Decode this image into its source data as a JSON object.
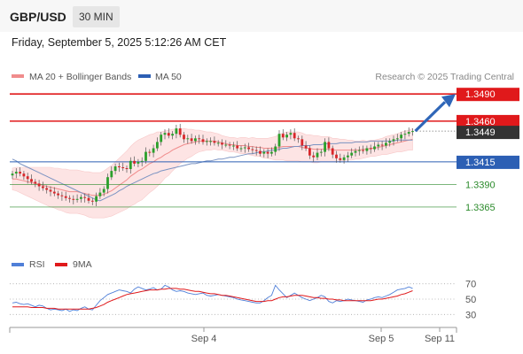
{
  "header": {
    "pair": "GBP/USD",
    "timeframe": "30 MIN",
    "datetime": "Friday, September 5, 2025 5:12:26 AM CET"
  },
  "legend": {
    "ma20_label": "MA 20 + Bollinger Bands",
    "ma50_label": "MA 50",
    "copyright": "Research © 2025 Trading Central"
  },
  "colors": {
    "resistance": "#e0191b",
    "support": "#2c5fb4",
    "target": "#2a8a2a",
    "bullish_candle": "#2ba02b",
    "bearish_candle": "#d9262a",
    "ma20": "#f08c8c",
    "ma50": "#7b93c2",
    "bollinger_fill": "#fde4e4",
    "arrow": "#2f66b8",
    "current_price_bg": "#333333",
    "rsi": "#4f7fd8",
    "rsi_ma": "#e0191b"
  },
  "chart_data": [
    {
      "type": "candlestick",
      "x_ticks": [
        "Sep 4",
        "Sep 5",
        "Sep 11"
      ],
      "levels": [
        {
          "value": 1.349,
          "label": "1.3490",
          "kind": "resistance"
        },
        {
          "value": 1.346,
          "label": "1.3460",
          "kind": "resistance"
        },
        {
          "value": 1.3415,
          "label": "1.3415",
          "kind": "pivot"
        },
        {
          "value": 1.339,
          "label": "1.3390",
          "kind": "support"
        },
        {
          "value": 1.3365,
          "label": "1.3365",
          "kind": "support"
        }
      ],
      "current_price": {
        "value": 1.3449,
        "label": "1.3449"
      },
      "series": [
        {
          "name": "MA 20 + Bollinger Bands"
        },
        {
          "name": "MA 50"
        }
      ],
      "ylim": [
        1.3318,
        1.35
      ],
      "closes": [
        1.3402,
        1.3404,
        1.3402,
        1.3399,
        1.3396,
        1.3393,
        1.3391,
        1.3388,
        1.3386,
        1.3384,
        1.3382,
        1.338,
        1.3378,
        1.3377,
        1.3375,
        1.3374,
        1.3373,
        1.3374,
        1.3376,
        1.3375,
        1.3372,
        1.3371,
        1.3377,
        1.3381,
        1.3385,
        1.3398,
        1.3405,
        1.341,
        1.3409,
        1.3408,
        1.3407,
        1.3416,
        1.3413,
        1.3415,
        1.3416,
        1.3426,
        1.3425,
        1.343,
        1.3437,
        1.3445,
        1.3447,
        1.3444,
        1.3446,
        1.3452,
        1.3445,
        1.344,
        1.3441,
        1.3438,
        1.3441,
        1.344,
        1.3437,
        1.3438,
        1.3438,
        1.3436,
        1.3436,
        1.3434,
        1.3434,
        1.3433,
        1.3433,
        1.343,
        1.343,
        1.3431,
        1.3429,
        1.3428,
        1.3427,
        1.3424,
        1.3426,
        1.3424,
        1.3426,
        1.3432,
        1.3446,
        1.3442,
        1.3445,
        1.3447,
        1.3441,
        1.344,
        1.3433,
        1.343,
        1.3422,
        1.342,
        1.3425,
        1.3426,
        1.3437,
        1.343,
        1.3423,
        1.3419,
        1.3417,
        1.342,
        1.3422,
        1.3425,
        1.3427,
        1.3428,
        1.3427,
        1.343,
        1.3429,
        1.3432,
        1.3434,
        1.3433,
        1.3436,
        1.3438,
        1.344,
        1.3441,
        1.3445,
        1.3446,
        1.3448,
        1.3449
      ],
      "ma20": [
        1.3396,
        1.3396,
        1.3395,
        1.3394,
        1.3393,
        1.3392,
        1.3391,
        1.339,
        1.3389,
        1.3388,
        1.3387,
        1.3386,
        1.3385,
        1.3384,
        1.3383,
        1.3382,
        1.3382,
        1.3382,
        1.3381,
        1.338,
        1.3379,
        1.3378,
        1.3378,
        1.3378,
        1.3379,
        1.3381,
        1.3383,
        1.3386,
        1.3389,
        1.3392,
        1.3395,
        1.3399,
        1.3402,
        1.3405,
        1.3407,
        1.341,
        1.3413,
        1.3415,
        1.3418,
        1.342,
        1.3423,
        1.3425,
        1.3428,
        1.343,
        1.3432,
        1.3434,
        1.3435,
        1.3436,
        1.3437,
        1.3438,
        1.3438,
        1.3438,
        1.3438,
        1.3438,
        1.3437,
        1.3436,
        1.3435,
        1.3434,
        1.3434,
        1.3433,
        1.3433,
        1.3433,
        1.3432,
        1.3432,
        1.3431,
        1.3431,
        1.343,
        1.343,
        1.343,
        1.343,
        1.3431,
        1.3432,
        1.3432,
        1.3432,
        1.3432,
        1.3432,
        1.3431,
        1.343,
        1.343,
        1.3429,
        1.3429,
        1.3429,
        1.3429,
        1.3429,
        1.3428,
        1.3428,
        1.3428,
        1.3428,
        1.3428,
        1.3428,
        1.3428,
        1.3428,
        1.3429,
        1.3429,
        1.343,
        1.343,
        1.3431,
        1.3432,
        1.3433,
        1.3434,
        1.3435,
        1.3436,
        1.3437,
        1.3438,
        1.3439,
        1.344
      ],
      "ma50": [
        1.3418,
        1.3416,
        1.3413,
        1.3411,
        1.3409,
        1.3407,
        1.3405,
        1.3403,
        1.3401,
        1.3399,
        1.3397,
        1.3395,
        1.3393,
        1.3391,
        1.3389,
        1.3387,
        1.3385,
        1.3383,
        1.3381,
        1.3379,
        1.3377,
        1.3375,
        1.3373,
        1.3372,
        1.3374,
        1.3376,
        1.3378,
        1.338,
        1.3383,
        1.3385,
        1.3388,
        1.339,
        1.3392,
        1.3394,
        1.3396,
        1.3398,
        1.34,
        1.3402,
        1.3403,
        1.3405,
        1.3406,
        1.3407,
        1.3408,
        1.3409,
        1.341,
        1.3411,
        1.3412,
        1.3413,
        1.3413,
        1.3414,
        1.3415,
        1.3416,
        1.3416,
        1.3417,
        1.3418,
        1.3418,
        1.3419,
        1.342,
        1.342,
        1.3421,
        1.3422,
        1.3423,
        1.3424,
        1.3424,
        1.3425,
        1.3426,
        1.3426,
        1.3427,
        1.3428,
        1.3428,
        1.3429,
        1.343,
        1.343,
        1.3431,
        1.3432,
        1.3432,
        1.3433,
        1.3433,
        1.3433,
        1.3434,
        1.3434,
        1.3434,
        1.3435,
        1.3435,
        1.3435,
        1.3435,
        1.3436,
        1.3436,
        1.3436,
        1.3436,
        1.3437,
        1.3437,
        1.3437,
        1.3437,
        1.3438,
        1.3438,
        1.3438,
        1.3438,
        1.3438,
        1.3438,
        1.3438,
        1.3439,
        1.3439,
        1.3439,
        1.3439,
        1.3439
      ],
      "bb_width": [
        0.0012,
        0.0013,
        0.0014,
        0.0015,
        0.0016,
        0.0017,
        0.0018,
        0.0019,
        0.002,
        0.0021,
        0.0022,
        0.0022,
        0.0023,
        0.0023,
        0.0024,
        0.0024,
        0.0024,
        0.0024,
        0.0024,
        0.0024,
        0.0025,
        0.0025,
        0.0025,
        0.0025,
        0.0026,
        0.0027,
        0.0028,
        0.0029,
        0.003,
        0.0031,
        0.0032,
        0.0033,
        0.0034,
        0.0034,
        0.0034,
        0.0033,
        0.0032,
        0.0031,
        0.003,
        0.0028,
        0.0026,
        0.0025,
        0.0023,
        0.0021,
        0.0019,
        0.0018,
        0.0016,
        0.0015,
        0.0013,
        0.0012,
        0.0011,
        0.001,
        0.001,
        0.0009,
        0.0009,
        0.0008,
        0.0008,
        0.0008,
        0.0008,
        0.0008,
        0.0009,
        0.0009,
        0.0009,
        0.001,
        0.001,
        0.001,
        0.0011,
        0.0011,
        0.0012,
        0.0013,
        0.0014,
        0.0015,
        0.0016,
        0.0016,
        0.0016,
        0.0016,
        0.0016,
        0.0015,
        0.0015,
        0.0015,
        0.0015,
        0.0014,
        0.0014,
        0.0014,
        0.0013,
        0.0013,
        0.0012,
        0.0012,
        0.0011,
        0.0011,
        0.001,
        0.001,
        0.001,
        0.0009,
        0.0009,
        0.0009,
        0.0009,
        0.0009,
        0.001,
        0.001,
        0.001,
        0.001,
        0.0011,
        0.0011,
        0.0011,
        0.0012
      ]
    },
    {
      "type": "line",
      "series": [
        {
          "name": "RSI"
        },
        {
          "name": "9MA"
        }
      ],
      "ylim": [
        20,
        80
      ],
      "y_ticks": [
        70,
        50,
        30
      ],
      "rsi": [
        45,
        46,
        44,
        43,
        44,
        42,
        40,
        42,
        41,
        38,
        36,
        37,
        36,
        35,
        37,
        34,
        36,
        35,
        38,
        40,
        37,
        36,
        42,
        48,
        52,
        56,
        58,
        60,
        62,
        61,
        60,
        58,
        63,
        66,
        64,
        62,
        63,
        65,
        62,
        63,
        68,
        66,
        62,
        60,
        61,
        60,
        58,
        57,
        56,
        57,
        58,
        55,
        54,
        55,
        56,
        55,
        54,
        53,
        52,
        50,
        49,
        48,
        47,
        46,
        45,
        45,
        48,
        52,
        55,
        68,
        62,
        57,
        52,
        55,
        58,
        55,
        52,
        50,
        48,
        50,
        52,
        55,
        53,
        47,
        45,
        48,
        47,
        48,
        50,
        49,
        48,
        47,
        46,
        49,
        50,
        52,
        53,
        52,
        54,
        56,
        59,
        62,
        63,
        64,
        66,
        64
      ],
      "rsi_ma": [
        40,
        40,
        40,
        40,
        40,
        39,
        39,
        39,
        39,
        38,
        38,
        38,
        37,
        37,
        37,
        37,
        37,
        37,
        37,
        37,
        37,
        38,
        39,
        41,
        43,
        46,
        48,
        50,
        52,
        54,
        56,
        57,
        58,
        59,
        60,
        61,
        62,
        62,
        62,
        63,
        63,
        64,
        64,
        64,
        63,
        63,
        62,
        61,
        60,
        60,
        59,
        58,
        57,
        57,
        56,
        55,
        55,
        54,
        53,
        52,
        51,
        50,
        49,
        48,
        47,
        47,
        47,
        48,
        48,
        50,
        52,
        53,
        53,
        54,
        55,
        55,
        55,
        54,
        53,
        52,
        52,
        51,
        51,
        50,
        50,
        49,
        49,
        48,
        48,
        48,
        48,
        48,
        48,
        48,
        48,
        49,
        50,
        50,
        51,
        52,
        53,
        54,
        56,
        57,
        59,
        61
      ]
    }
  ]
}
